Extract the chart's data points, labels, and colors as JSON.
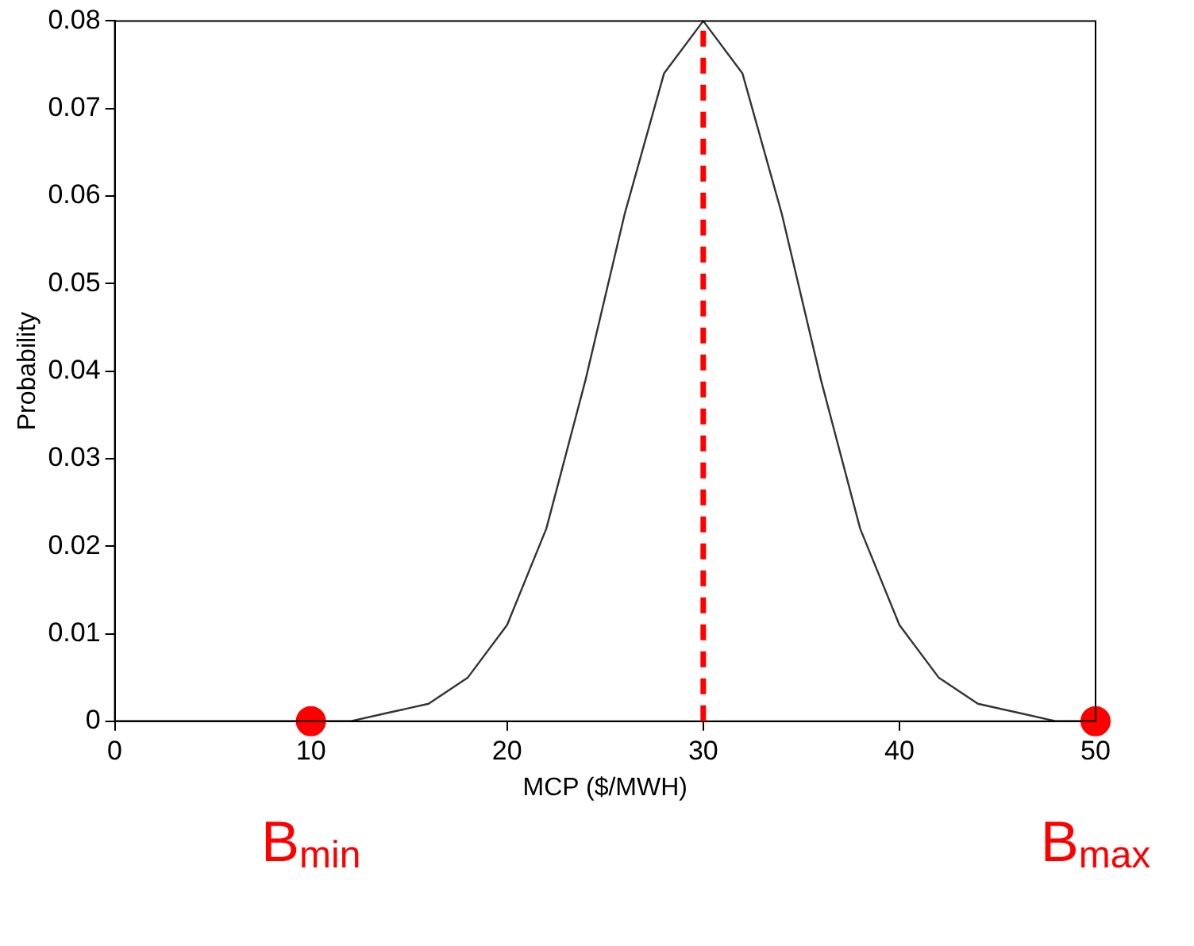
{
  "chart_data": {
    "type": "line",
    "xlabel": "MCP ($/MWH)",
    "ylabel": "Probability",
    "xlim": [
      0,
      50
    ],
    "xticks": [
      0,
      10,
      20,
      30,
      40,
      50
    ],
    "ylim": [
      0,
      0.08
    ],
    "yticks": [
      0,
      0.01,
      0.02,
      0.03,
      0.04,
      0.05,
      0.06,
      0.07,
      0.08
    ],
    "grid": false,
    "legend": false,
    "series": [
      {
        "color": "#333333",
        "marker": "none",
        "line_style": "solid",
        "x": [
          0,
          2,
          4,
          6,
          8,
          10,
          12,
          14,
          16,
          18,
          20,
          22,
          24,
          26,
          28,
          30,
          32,
          34,
          36,
          38,
          40,
          42,
          44,
          46,
          48,
          50
        ],
        "values": [
          0,
          0,
          0,
          0,
          0,
          0,
          0,
          0.001,
          0.002,
          0.005,
          0.011,
          0.022,
          0.039,
          0.058,
          0.074,
          0.08,
          0.074,
          0.058,
          0.039,
          0.022,
          0.011,
          0.005,
          0.002,
          0.001,
          0,
          0
        ]
      },
      {
        "type": "scatter",
        "color": "#ff0000",
        "marker": "circle",
        "x": [
          10,
          50
        ],
        "values": [
          0,
          0
        ]
      }
    ],
    "ref_lines": [
      {
        "axis": "x",
        "value": 30,
        "color": "#ff0000",
        "line_style": "dashed"
      }
    ],
    "annotations": [
      {
        "text": "B$_{min}$",
        "x": 10,
        "y": 0
      },
      {
        "text": "B$_{max}$",
        "x": 50,
        "y": 0
      }
    ]
  }
}
